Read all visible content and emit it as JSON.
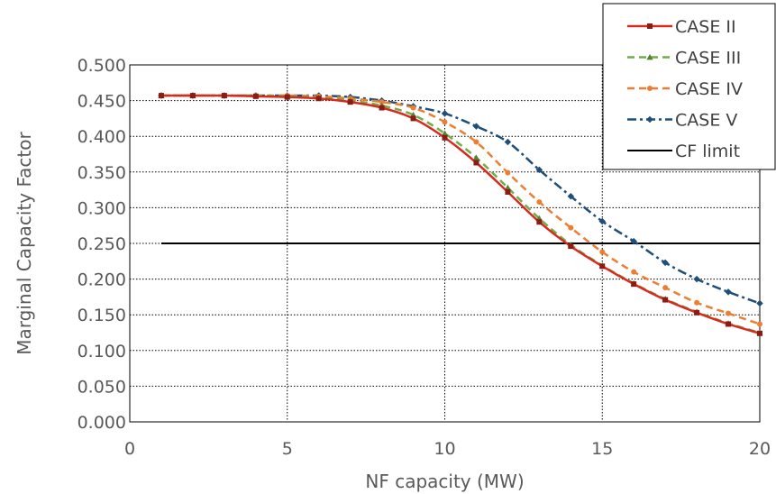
{
  "chart_data": {
    "type": "line",
    "title": "",
    "xlabel": "NF capacity (MW)",
    "ylabel": "Marginal Capacity Factor",
    "xlim": [
      0,
      20
    ],
    "ylim": [
      0,
      0.5
    ],
    "x_ticks": [
      "0",
      "5",
      "10",
      "15",
      "20"
    ],
    "y_ticks": [
      "0.000",
      "0.050",
      "0.100",
      "0.150",
      "0.200",
      "0.250",
      "0.300",
      "0.350",
      "0.400",
      "0.450",
      "0.500"
    ],
    "grid": "dotted",
    "legend_position": "top-right",
    "x": [
      1,
      2,
      3,
      4,
      5,
      6,
      7,
      8,
      9,
      10,
      11,
      12,
      13,
      14,
      15,
      16,
      17,
      18,
      19,
      20
    ],
    "series": [
      {
        "name": "CASE II",
        "color": "#d62b1f",
        "dash": "solid",
        "marker": "square",
        "marker_color": "#8b1c14",
        "values": [
          0.457,
          0.457,
          0.457,
          0.456,
          0.455,
          0.453,
          0.448,
          0.44,
          0.425,
          0.398,
          0.363,
          0.322,
          0.28,
          0.246,
          0.218,
          0.193,
          0.171,
          0.153,
          0.137,
          0.124
        ]
      },
      {
        "name": "CASE III",
        "color": "#70ad47",
        "dash": "dash",
        "marker": "triangle",
        "marker_color": "#548235",
        "values": [
          0.457,
          0.457,
          0.457,
          0.457,
          0.456,
          0.454,
          0.45,
          0.443,
          0.43,
          0.404,
          0.37,
          0.328,
          0.285,
          0.248,
          0.219,
          0.194,
          0.172,
          0.154,
          0.138,
          0.125
        ]
      },
      {
        "name": "CASE IV",
        "color": "#ed7d31",
        "dash": "dash",
        "marker": "circle",
        "marker_color": "#ed7d31",
        "values": [
          0.457,
          0.457,
          0.457,
          0.457,
          0.457,
          0.456,
          0.453,
          0.448,
          0.44,
          0.42,
          0.392,
          0.349,
          0.308,
          0.272,
          0.238,
          0.21,
          0.188,
          0.167,
          0.152,
          0.137
        ]
      },
      {
        "name": "CASE V",
        "color": "#1f4e79",
        "dash": "dashdot",
        "marker": "diamond",
        "marker_color": "#1f4e79",
        "values": [
          0.457,
          0.457,
          0.457,
          0.457,
          0.457,
          0.457,
          0.455,
          0.45,
          0.442,
          0.432,
          0.414,
          0.392,
          0.353,
          0.316,
          0.281,
          0.253,
          0.223,
          0.2,
          0.182,
          0.166
        ]
      },
      {
        "name": "CF limit",
        "color": "#000000",
        "dash": "solid",
        "marker": "none",
        "marker_color": "#000000",
        "values": [
          0.25,
          0.25,
          0.25,
          0.25,
          0.25,
          0.25,
          0.25,
          0.25,
          0.25,
          0.25,
          0.25,
          0.25,
          0.25,
          0.25,
          0.25,
          0.25,
          0.25,
          0.25,
          0.25,
          0.25
        ]
      }
    ]
  }
}
